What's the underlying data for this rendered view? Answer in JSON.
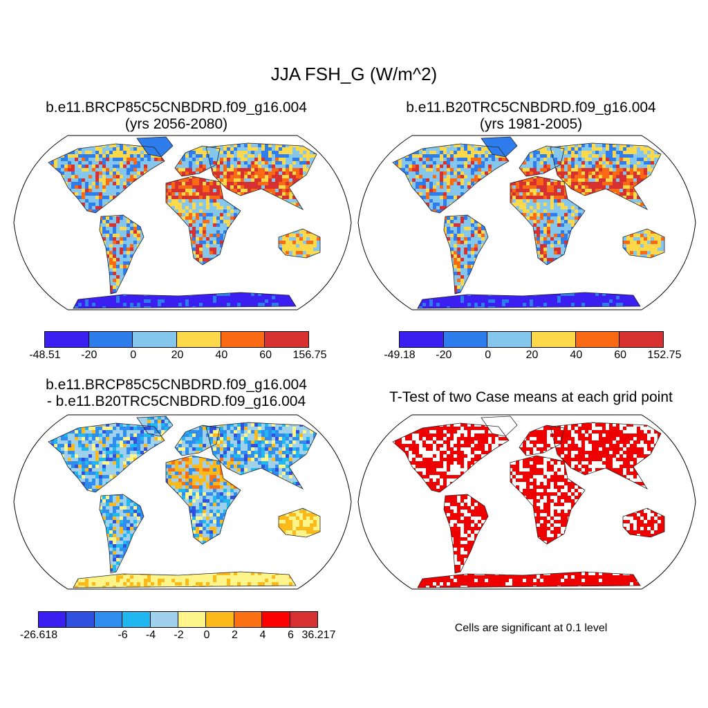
{
  "title": "JJA FSH_G (W/m^2)",
  "panels": [
    {
      "title_line1": "b.e11.BRCP85C5CNBDRD.f09_g16.004",
      "title_line2": "(yrs 2056-2080)"
    },
    {
      "title_line1": "b.e11.B20TRC5CNBDRD.f09_g16.004",
      "title_line2": "(yrs 1981-2005)"
    },
    {
      "title_line1": "b.e11.BRCP85C5CNBDRD.f09_g16.004",
      "title_line2": "- b.e11.B20TRC5CNBDRD.f09_g16.004"
    },
    {
      "title_line1": "T-Test of two Case means at each grid point"
    }
  ],
  "colorbars": [
    {
      "colors": [
        "#3a1ff0",
        "#2f7ded",
        "#84c6ec",
        "#fcd94a",
        "#fa6a14",
        "#d63030"
      ],
      "labels": [
        "-48.51",
        "-20",
        "0",
        "20",
        "40",
        "60",
        "156.75"
      ]
    },
    {
      "colors": [
        "#3a1ff0",
        "#2f7ded",
        "#84c6ec",
        "#fcd94a",
        "#fa6a14",
        "#d63030"
      ],
      "labels": [
        "-49.18",
        "-20",
        "0",
        "20",
        "40",
        "60",
        "152.75"
      ]
    },
    {
      "colors": [
        "#3a1ff0",
        "#3050e0",
        "#2f8ded",
        "#1fb8f0",
        "#9fd0ec",
        "#fdf48a",
        "#fbb91a",
        "#fa7012",
        "#ff0000",
        "#d63030"
      ],
      "labels": [
        "-26.618",
        "-6",
        "-4",
        "-2",
        "0",
        "2",
        "4",
        "6",
        "36.217"
      ]
    }
  ],
  "significance_note": "Cells are significant at 0.1 level",
  "significance_color": "#ee0000"
}
